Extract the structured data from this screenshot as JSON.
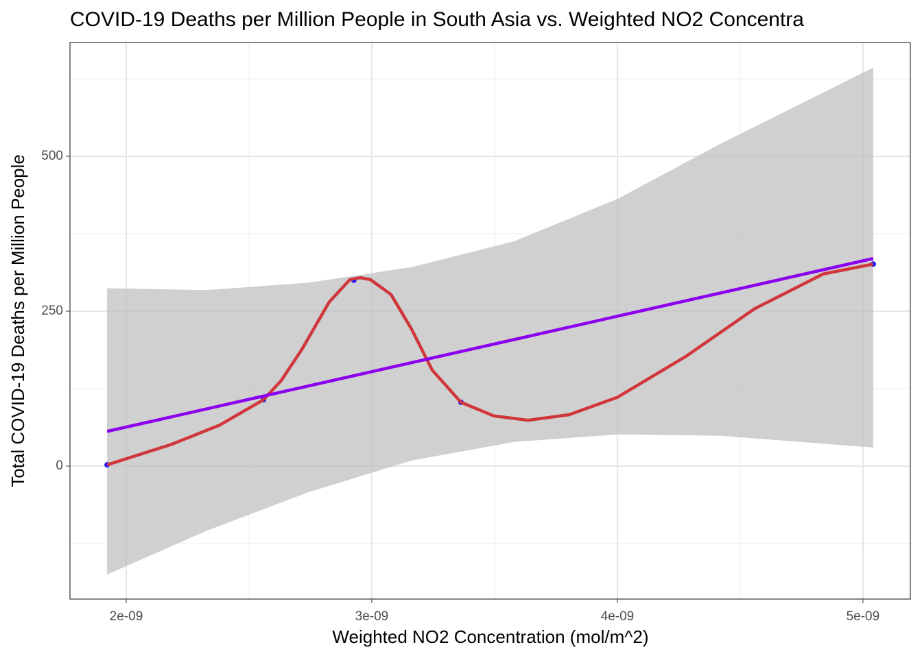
{
  "chart_data": {
    "type": "scatter",
    "title": "COVID-19 Deaths per Million People in South Asia vs. Weighted NO2 Concentra",
    "x_label": "Weighted NO2 Concentration (mol/m^2)",
    "y_label": "Total COVID-19 Deaths per Million People",
    "xlim": [
      1.771e-09,
      5.193e-09
    ],
    "ylim": [
      -214.6,
      683.6
    ],
    "xticks": [
      {
        "value": 2e-09,
        "label": "2e-09"
      },
      {
        "value": 3e-09,
        "label": "3e-09"
      },
      {
        "value": 4e-09,
        "label": "4e-09"
      },
      {
        "value": 5e-09,
        "label": "5e-09"
      }
    ],
    "yticks": [
      0,
      250,
      500
    ],
    "grid": true,
    "minor_grid": true,
    "band": {
      "color": "#bebebe",
      "x": [
        1.922e-09,
        2.324e-09,
        2.743e-09,
        3.162e-09,
        3.581e-09,
        4e-09,
        4.419e-09,
        5.042e-09
      ],
      "upper": [
        287,
        284,
        296,
        321,
        363,
        431,
        520,
        643
      ],
      "lower": [
        -175,
        -105,
        -42,
        9,
        39,
        51,
        49,
        30
      ]
    },
    "fit": {
      "color": "#8b00ee",
      "x": [
        1.922e-09,
        5.042e-09
      ],
      "values": [
        56,
        335
      ]
    },
    "smooth": {
      "color": "#d0363a",
      "x": [
        1.922e-09,
        2.184e-09,
        2.38e-09,
        2.559e-09,
        2.631e-09,
        2.715e-09,
        2.827e-09,
        2.911e-09,
        2.953e-09,
        2.994e-09,
        3.078e-09,
        3.162e-09,
        3.246e-09,
        3.363e-09,
        3.497e-09,
        3.637e-09,
        3.804e-09,
        4e-09,
        4.279e-09,
        4.559e-09,
        4.838e-09,
        5.042e-09
      ],
      "values": [
        2,
        35,
        66,
        107,
        138,
        188,
        265,
        301,
        304,
        301,
        277,
        221,
        155,
        103,
        81,
        74,
        83,
        111,
        177,
        254,
        310,
        326
      ]
    },
    "points": {
      "color": "#1a1aff",
      "x": [
        1.922e-09,
        2.559e-09,
        2.927e-09,
        3.363e-09,
        5.042e-09
      ],
      "values": [
        2,
        107,
        300,
        103,
        326
      ]
    }
  }
}
